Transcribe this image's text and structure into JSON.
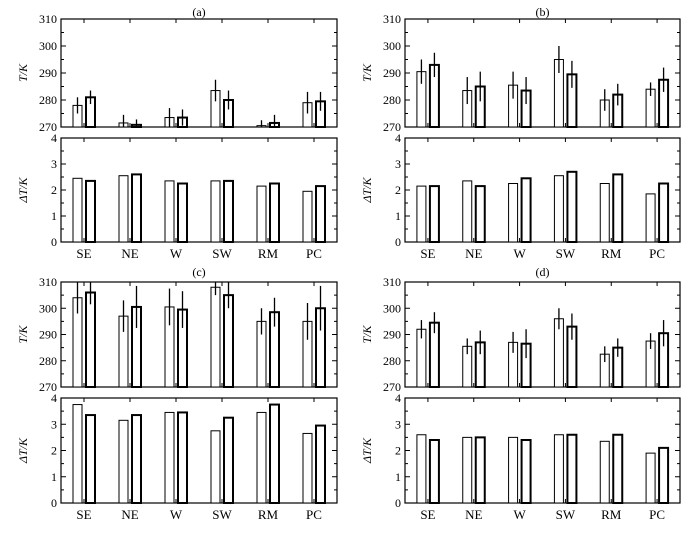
{
  "chart_data": [
    {
      "type": "bar",
      "panel": "(a)",
      "title": "(a)",
      "categories": [
        "SE",
        "NE",
        "W",
        "SW",
        "RM",
        "PC"
      ],
      "top": {
        "ylabel": "T/K",
        "ylim": [
          270,
          310
        ],
        "yticks": [
          270,
          280,
          290,
          300,
          310
        ],
        "series": [
          {
            "values": [
              278,
              271.5,
              273.5,
              283.5,
              270.5,
              279
            ],
            "errors": [
              3,
              3,
              3.5,
              4,
              2,
              4
            ]
          },
          {
            "values": [
              281,
              270.8,
              273.5,
              280,
              271.5,
              279.5
            ],
            "errors": [
              2.5,
              2,
              3,
              3.5,
              3,
              3.5
            ]
          }
        ]
      },
      "bottom": {
        "ylabel": "ΔT/K",
        "ylim": [
          0,
          4
        ],
        "yticks": [
          0,
          1,
          2,
          3,
          4
        ],
        "series": [
          {
            "values": [
              2.45,
              2.55,
              2.35,
              2.35,
              2.15,
              1.95
            ]
          },
          {
            "values": [
              2.35,
              2.6,
              2.25,
              2.35,
              2.25,
              2.15
            ]
          }
        ]
      }
    },
    {
      "type": "bar",
      "panel": "(b)",
      "title": "(b)",
      "categories": [
        "SE",
        "NE",
        "W",
        "SW",
        "RM",
        "PC"
      ],
      "top": {
        "ylabel": "T/K",
        "ylim": [
          270,
          310
        ],
        "yticks": [
          270,
          280,
          290,
          300,
          310
        ],
        "series": [
          {
            "values": [
              290.5,
              283.5,
              285.5,
              295,
              280,
              284
            ],
            "errors": [
              4.5,
              5,
              5,
              5,
              4,
              2.5
            ]
          },
          {
            "values": [
              293,
              285,
              283.5,
              289.5,
              282,
              287.5
            ],
            "errors": [
              4.5,
              5.5,
              5,
              5,
              4,
              4.5
            ]
          }
        ]
      },
      "bottom": {
        "ylabel": "ΔT/K",
        "ylim": [
          0,
          4
        ],
        "yticks": [
          0,
          1,
          2,
          3,
          4
        ],
        "series": [
          {
            "values": [
              2.15,
              2.35,
              2.25,
              2.55,
              2.25,
              1.85
            ]
          },
          {
            "values": [
              2.15,
              2.15,
              2.45,
              2.7,
              2.6,
              2.25
            ]
          }
        ]
      }
    },
    {
      "type": "bar",
      "panel": "(c)",
      "title": "(c)",
      "categories": [
        "SE",
        "NE",
        "W",
        "SW",
        "RM",
        "PC"
      ],
      "top": {
        "ylabel": "T/K",
        "ylim": [
          270,
          310
        ],
        "yticks": [
          270,
          280,
          290,
          300,
          310
        ],
        "series": [
          {
            "values": [
              304,
              297,
              300.5,
              308,
              295,
              295
            ],
            "errors": [
              6,
              6,
              7,
              3,
              5,
              7
            ]
          },
          {
            "values": [
              306,
              300.5,
              299.5,
              305,
              298.5,
              300
            ],
            "errors": [
              4.5,
              8,
              7,
              5,
              5.5,
              8.5
            ]
          }
        ]
      },
      "bottom": {
        "ylabel": "ΔT/K",
        "ylim": [
          0,
          4
        ],
        "yticks": [
          0,
          1,
          2,
          3,
          4
        ],
        "series": [
          {
            "values": [
              3.75,
              3.15,
              3.45,
              2.75,
              3.45,
              2.65
            ]
          },
          {
            "values": [
              3.35,
              3.35,
              3.45,
              3.25,
              3.75,
              2.95
            ]
          }
        ]
      }
    },
    {
      "type": "bar",
      "panel": "(d)",
      "title": "(d)",
      "categories": [
        "SE",
        "NE",
        "W",
        "SW",
        "RM",
        "PC"
      ],
      "top": {
        "ylabel": "T/K",
        "ylim": [
          270,
          310
        ],
        "yticks": [
          270,
          280,
          290,
          300,
          310
        ],
        "series": [
          {
            "values": [
              292,
              285.5,
              287,
              296,
              282.5,
              287.5
            ],
            "errors": [
              3.5,
              3,
              4,
              4,
              3,
              3
            ]
          },
          {
            "values": [
              294.5,
              287,
              286.5,
              293,
              285,
              290.5
            ],
            "errors": [
              4,
              4.5,
              5.5,
              5,
              3.5,
              5
            ]
          }
        ]
      },
      "bottom": {
        "ylabel": "ΔT/K",
        "ylim": [
          0,
          4
        ],
        "yticks": [
          0,
          1,
          2,
          3,
          4
        ],
        "series": [
          {
            "values": [
              2.6,
              2.5,
              2.5,
              2.6,
              2.35,
              1.9
            ]
          },
          {
            "values": [
              2.4,
              2.5,
              2.4,
              2.6,
              2.6,
              2.1
            ]
          }
        ]
      }
    }
  ]
}
